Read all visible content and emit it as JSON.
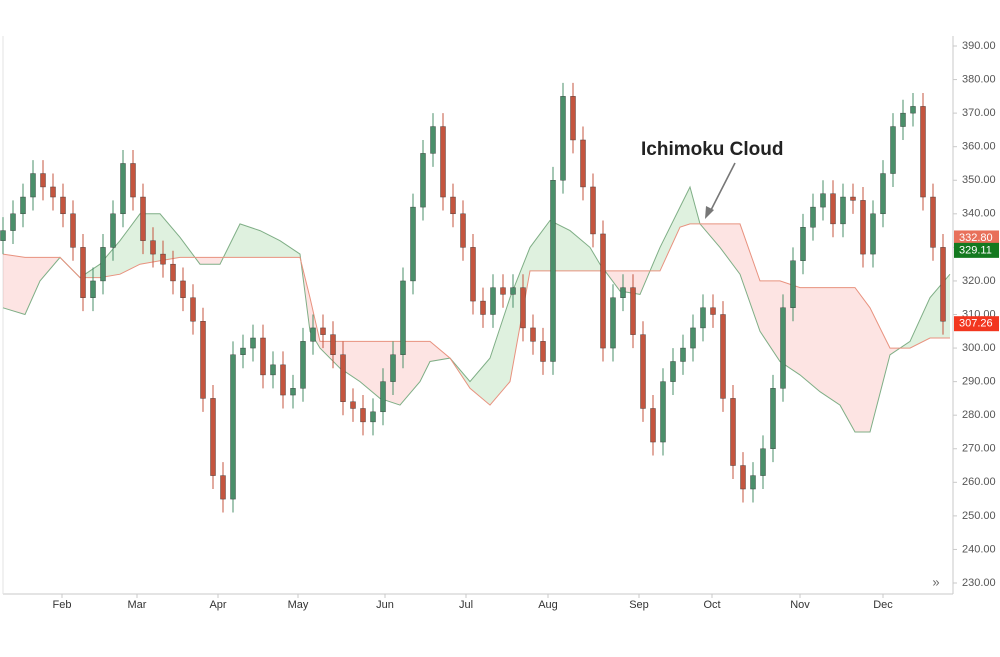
{
  "chart_data": {
    "type": "candlestick",
    "annotation": "Ichimoku Cloud",
    "up_color": "#4a8f6a",
    "down_color": "#c4553f",
    "xlim": [
      0,
      237.5
    ],
    "ylim": [
      230,
      390
    ],
    "xticks": [
      {
        "value": 14.75,
        "label": "Feb"
      },
      {
        "value": 33.5,
        "label": "Mar"
      },
      {
        "value": 53.75,
        "label": "Apr"
      },
      {
        "value": 73.75,
        "label": "May"
      },
      {
        "value": 95.5,
        "label": "Jun"
      },
      {
        "value": 115.75,
        "label": "Jul"
      },
      {
        "value": 136.25,
        "label": "Aug"
      },
      {
        "value": 159,
        "label": "Sep"
      },
      {
        "value": 177.25,
        "label": "Oct"
      },
      {
        "value": 199.25,
        "label": "Nov"
      },
      {
        "value": 220,
        "label": "Dec"
      }
    ],
    "yticks": [
      {
        "value": 230,
        "label": "230.00"
      },
      {
        "value": 240,
        "label": "240.00"
      },
      {
        "value": 250,
        "label": "250.00"
      },
      {
        "value": 260,
        "label": "260.00"
      },
      {
        "value": 270,
        "label": "270.00"
      },
      {
        "value": 280,
        "label": "280.00"
      },
      {
        "value": 290,
        "label": "290.00"
      },
      {
        "value": 300,
        "label": "300.00"
      },
      {
        "value": 310,
        "label": "310.00"
      },
      {
        "value": 320,
        "label": "320.00"
      },
      {
        "value": 330,
        "label": "330.00"
      },
      {
        "value": 340,
        "label": "340.00"
      },
      {
        "value": 350,
        "label": "350.00"
      },
      {
        "value": 360,
        "label": "360.00"
      },
      {
        "value": 370,
        "label": "370.00"
      },
      {
        "value": 380,
        "label": "380.00"
      },
      {
        "value": 390,
        "label": "390.00"
      }
    ],
    "price_labels": [
      {
        "value": 332.8,
        "label": "332.80",
        "color": "#e8705a"
      },
      {
        "value": 329.11,
        "label": "329.11",
        "color": "#13791f"
      },
      {
        "value": 307.26,
        "label": "307.26",
        "color": "#f2361f"
      }
    ],
    "x": [
      0,
      2.5,
      5,
      7.5,
      10,
      12.5,
      15,
      17.5,
      20,
      22.5,
      25,
      27.5,
      30,
      32.5,
      35,
      37.5,
      40,
      42.5,
      45,
      47.5,
      50,
      52.5,
      55,
      57.5,
      60,
      62.5,
      65,
      67.5,
      70,
      72.5,
      75,
      77.5,
      80,
      82.5,
      85,
      87.5,
      90,
      92.5,
      95,
      97.5,
      100,
      102.5,
      105,
      107.5,
      110,
      112.5,
      115,
      117.5,
      120,
      122.5,
      125,
      127.5,
      130,
      132.5,
      135,
      137.5,
      140,
      142.5,
      145,
      147.5,
      150,
      152.5,
      155,
      157.5,
      160,
      162.5,
      165,
      167.5,
      170,
      172.5,
      175,
      177.5,
      180,
      182.5,
      185,
      187.5,
      190,
      192.5,
      195,
      197.5,
      200,
      202.5,
      205,
      207.5,
      210,
      212.5,
      215,
      217.5,
      220,
      222.5,
      225,
      227.5,
      230,
      232.5,
      235
    ],
    "open": [
      332,
      335,
      340,
      345,
      352,
      348,
      345,
      340,
      330,
      315,
      320,
      330,
      340,
      355,
      345,
      332,
      328,
      325,
      320,
      315,
      308,
      285,
      262,
      255,
      298,
      300,
      303,
      292,
      295,
      286,
      288,
      302,
      306,
      304,
      298,
      284,
      282,
      278,
      281,
      290,
      298,
      320,
      342,
      358,
      366,
      345,
      340,
      330,
      314,
      310,
      318,
      316,
      318,
      306,
      302,
      296,
      350,
      375,
      362,
      348,
      334,
      300,
      315,
      318,
      304,
      282,
      272,
      290,
      296,
      300,
      306,
      312,
      310,
      285,
      265,
      258,
      262,
      270,
      288,
      312,
      326,
      336,
      342,
      346,
      337,
      345,
      344,
      328,
      340,
      352,
      366,
      370,
      372,
      345,
      330
    ],
    "high": [
      339,
      344,
      349,
      356,
      356,
      352,
      349,
      344,
      334,
      324,
      334,
      344,
      359,
      359,
      349,
      336,
      332,
      329,
      324,
      319,
      312,
      289,
      266,
      302,
      304,
      307,
      307,
      299,
      299,
      292,
      306,
      310,
      310,
      308,
      302,
      288,
      286,
      285,
      294,
      302,
      324,
      346,
      362,
      370,
      370,
      349,
      344,
      334,
      318,
      322,
      322,
      322,
      322,
      310,
      306,
      354,
      379,
      379,
      366,
      352,
      338,
      319,
      322,
      322,
      308,
      286,
      294,
      300,
      304,
      310,
      316,
      316,
      314,
      289,
      269,
      266,
      274,
      292,
      316,
      330,
      340,
      346,
      350,
      350,
      349,
      349,
      348,
      344,
      356,
      370,
      374,
      376,
      376,
      349,
      334
    ],
    "low": [
      328,
      331,
      336,
      341,
      344,
      341,
      336,
      326,
      311,
      311,
      316,
      326,
      336,
      341,
      328,
      324,
      321,
      316,
      311,
      304,
      281,
      258,
      251,
      251,
      294,
      296,
      288,
      288,
      282,
      282,
      284,
      298,
      300,
      294,
      280,
      278,
      274,
      274,
      277,
      286,
      294,
      316,
      338,
      354,
      341,
      336,
      326,
      310,
      306,
      306,
      312,
      312,
      302,
      298,
      292,
      292,
      346,
      358,
      344,
      330,
      296,
      296,
      311,
      300,
      278,
      268,
      268,
      286,
      292,
      296,
      302,
      306,
      281,
      261,
      254,
      254,
      258,
      266,
      284,
      308,
      322,
      332,
      338,
      333,
      333,
      340,
      324,
      324,
      336,
      348,
      362,
      366,
      341,
      326,
      304
    ],
    "close": [
      335,
      340,
      345,
      352,
      348,
      345,
      340,
      330,
      315,
      320,
      330,
      340,
      355,
      345,
      332,
      328,
      325,
      320,
      315,
      308,
      285,
      262,
      255,
      298,
      300,
      303,
      292,
      295,
      286,
      288,
      302,
      306,
      304,
      298,
      284,
      282,
      278,
      281,
      290,
      298,
      320,
      342,
      358,
      366,
      345,
      340,
      330,
      314,
      310,
      318,
      316,
      318,
      306,
      302,
      296,
      350,
      375,
      362,
      348,
      334,
      300,
      315,
      318,
      304,
      282,
      272,
      290,
      296,
      300,
      306,
      312,
      310,
      285,
      265,
      258,
      262,
      270,
      288,
      312,
      326,
      336,
      342,
      346,
      337,
      345,
      344,
      328,
      340,
      352,
      366,
      370,
      372,
      345,
      330,
      308
    ],
    "cloud": {
      "bull_color": "#4caf50",
      "bear_color": "#f44336",
      "span_a_color": "#7fae86",
      "span_b_color": "#e8927f",
      "x": [
        0,
        5.5,
        9.25,
        14.25,
        19.25,
        24.25,
        29.25,
        34.25,
        39.25,
        44.25,
        49.25,
        54.25,
        59.25,
        64.25,
        69.25,
        74.25,
        76.75,
        79.25,
        84.25,
        89.25,
        94.25,
        99.25,
        104.25,
        106.75,
        111.75,
        116.75,
        121.75,
        126.75,
        131.75,
        136.75,
        141.75,
        146.75,
        149.25,
        154.25,
        159.25,
        164.25,
        169.25,
        171.75,
        174.25,
        179.25,
        184.25,
        189.25,
        194.25,
        199.25,
        204.25,
        209.25,
        213,
        216.75,
        221.75,
        226.75,
        231.75,
        236.75
      ],
      "span_a": [
        312,
        310,
        320,
        327,
        321,
        325,
        332,
        340,
        340,
        333,
        325,
        325,
        337,
        335,
        332,
        328,
        305,
        300,
        294,
        290,
        285,
        283,
        290,
        296,
        297,
        290,
        297,
        315,
        330,
        338,
        335,
        330,
        325,
        317,
        316,
        330,
        342,
        348,
        337,
        330,
        322,
        305,
        296,
        292,
        287,
        283,
        275,
        275,
        298,
        302,
        315,
        322
      ],
      "span_b": [
        328,
        327,
        327,
        327,
        321,
        321,
        322,
        325,
        326,
        327,
        327,
        327,
        327,
        327,
        327,
        327,
        315,
        302,
        302,
        302,
        302,
        302,
        302,
        302,
        297,
        288,
        283,
        290,
        323,
        323,
        323,
        323,
        323,
        323,
        323,
        323,
        336,
        337,
        337,
        337,
        337,
        320,
        320,
        318,
        318,
        318,
        318,
        312,
        300,
        300,
        303,
        303
      ]
    }
  }
}
